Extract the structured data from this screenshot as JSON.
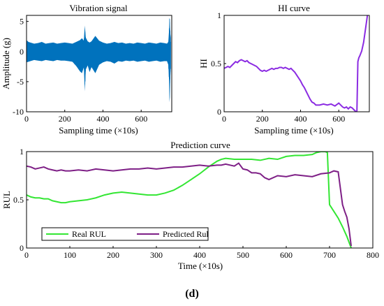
{
  "figure_label": "(d)",
  "colors": {
    "vibration": "#0072bd",
    "hi": "#8b2be2",
    "real": "#33e633",
    "predicted": "#7e1f86"
  },
  "chart_data": [
    {
      "type": "line",
      "title": "Vibration signal",
      "xlabel": "Sampling time (×10s)",
      "ylabel": "Amplitude (g)",
      "xlim": [
        0,
        760
      ],
      "ylim": [
        -10,
        6
      ],
      "xticks": [
        0,
        200,
        400,
        600
      ],
      "yticks": [
        5,
        0,
        -5,
        -10
      ],
      "series": [
        {
          "x": [
            0,
            10,
            20,
            40,
            60,
            80,
            100,
            120,
            140,
            160,
            180,
            200,
            220,
            240,
            260,
            280,
            290,
            300,
            305,
            310,
            320,
            330,
            340,
            360,
            380,
            400,
            420,
            440,
            460,
            480,
            500,
            520,
            540,
            560,
            580,
            600,
            620,
            640,
            660,
            680,
            700,
            720,
            735,
            742,
            746,
            748,
            750,
            752,
            755
          ],
          "high": [
            1.9,
            1.6,
            1.5,
            1.3,
            1.4,
            1.6,
            1.3,
            1.4,
            1.5,
            1.3,
            1.4,
            1.5,
            1.4,
            1.3,
            1.6,
            1.9,
            2.2,
            1.8,
            4.3,
            2.3,
            1.7,
            1.5,
            1.7,
            2.6,
            1.8,
            1.5,
            1.3,
            1.4,
            1.6,
            1.4,
            1.5,
            1.3,
            1.4,
            1.3,
            1.5,
            1.4,
            1.3,
            1.5,
            1.4,
            1.3,
            1.5,
            1.4,
            1.3,
            1.6,
            3.5,
            5.6,
            5.3,
            3.2,
            2.2
          ],
          "low": [
            -1.8,
            -1.7,
            -1.6,
            -1.4,
            -1.5,
            -1.6,
            -1.4,
            -1.5,
            -1.6,
            -1.4,
            -1.5,
            -1.5,
            -1.6,
            -1.7,
            -2.4,
            -3.3,
            -3.6,
            -2.6,
            -6.6,
            -3.0,
            -2.3,
            -3.4,
            -2.6,
            -3.6,
            -2.2,
            -1.8,
            -1.6,
            -1.7,
            -2.0,
            -1.6,
            -1.7,
            -1.5,
            -1.6,
            -1.5,
            -1.7,
            -1.6,
            -1.5,
            -1.7,
            -1.6,
            -1.5,
            -1.7,
            -1.6,
            -1.6,
            -2.2,
            -4.8,
            -8.4,
            -7.6,
            -4.5,
            -2.6
          ]
        }
      ]
    },
    {
      "type": "line",
      "title": "HI curve",
      "xlabel": "Sampling time (×10s)",
      "ylabel": "HI",
      "xlim": [
        0,
        760
      ],
      "ylim": [
        0,
        1
      ],
      "xticks": [
        0,
        200,
        400,
        600
      ],
      "yticks": [
        1,
        0.5,
        0
      ],
      "series": [
        {
          "x": [
            0,
            10,
            20,
            30,
            40,
            50,
            60,
            70,
            80,
            90,
            100,
            110,
            120,
            130,
            140,
            150,
            160,
            170,
            180,
            190,
            200,
            210,
            220,
            230,
            240,
            250,
            260,
            270,
            280,
            290,
            300,
            310,
            320,
            330,
            340,
            350,
            360,
            370,
            380,
            390,
            400,
            410,
            420,
            430,
            440,
            450,
            460,
            470,
            480,
            500,
            520,
            540,
            560,
            580,
            600,
            620,
            630,
            640,
            650,
            660,
            670,
            680,
            690,
            695,
            700,
            705,
            710,
            720,
            730,
            740,
            750
          ],
          "y": [
            0.45,
            0.46,
            0.47,
            0.46,
            0.48,
            0.5,
            0.52,
            0.51,
            0.53,
            0.54,
            0.53,
            0.52,
            0.53,
            0.51,
            0.5,
            0.49,
            0.48,
            0.47,
            0.45,
            0.43,
            0.42,
            0.43,
            0.42,
            0.43,
            0.44,
            0.45,
            0.44,
            0.45,
            0.45,
            0.46,
            0.46,
            0.45,
            0.46,
            0.45,
            0.44,
            0.45,
            0.43,
            0.41,
            0.38,
            0.35,
            0.32,
            0.28,
            0.25,
            0.21,
            0.17,
            0.13,
            0.1,
            0.09,
            0.07,
            0.07,
            0.08,
            0.07,
            0.08,
            0.06,
            0.09,
            0.05,
            0.04,
            0.05,
            0.03,
            0.05,
            0.04,
            0.02,
            0.0,
            0.01,
            0.52,
            0.56,
            0.58,
            0.63,
            0.72,
            0.86,
            1.0
          ]
        }
      ]
    },
    {
      "type": "line",
      "title": "Prediction curve",
      "xlabel": "Time (×10s)",
      "ylabel": "RUL",
      "xlim": [
        0,
        800
      ],
      "ylim": [
        0,
        1
      ],
      "xticks": [
        0,
        100,
        200,
        300,
        400,
        500,
        600,
        700,
        800
      ],
      "yticks": [
        1,
        0.5,
        0
      ],
      "legend": "bottom-left",
      "series": [
        {
          "name": "Real RUL",
          "x": [
            0,
            10,
            20,
            30,
            40,
            50,
            60,
            70,
            80,
            90,
            100,
            120,
            140,
            160,
            180,
            200,
            220,
            240,
            260,
            280,
            300,
            320,
            340,
            360,
            380,
            400,
            420,
            440,
            450,
            460,
            480,
            500,
            520,
            540,
            560,
            580,
            600,
            620,
            640,
            660,
            670,
            680,
            690,
            695,
            700,
            710,
            720,
            730,
            740,
            750
          ],
          "y": [
            0.55,
            0.53,
            0.52,
            0.52,
            0.51,
            0.51,
            0.49,
            0.48,
            0.47,
            0.47,
            0.48,
            0.49,
            0.5,
            0.52,
            0.55,
            0.57,
            0.58,
            0.57,
            0.56,
            0.55,
            0.55,
            0.57,
            0.6,
            0.65,
            0.71,
            0.77,
            0.84,
            0.9,
            0.92,
            0.93,
            0.92,
            0.92,
            0.92,
            0.91,
            0.93,
            0.92,
            0.95,
            0.96,
            0.96,
            0.97,
            0.99,
            1.0,
            1.0,
            0.99,
            0.45,
            0.38,
            0.31,
            0.22,
            0.12,
            0.0
          ]
        },
        {
          "name": "Predicted Rul",
          "x": [
            0,
            10,
            20,
            30,
            40,
            50,
            60,
            70,
            80,
            90,
            100,
            120,
            140,
            160,
            180,
            200,
            220,
            240,
            260,
            280,
            300,
            320,
            340,
            360,
            380,
            400,
            420,
            440,
            450,
            460,
            470,
            480,
            490,
            500,
            510,
            520,
            530,
            540,
            550,
            560,
            580,
            600,
            620,
            640,
            660,
            680,
            700,
            710,
            720,
            730,
            735,
            740,
            745,
            750
          ],
          "y": [
            0.85,
            0.84,
            0.82,
            0.83,
            0.84,
            0.82,
            0.81,
            0.8,
            0.81,
            0.8,
            0.8,
            0.81,
            0.8,
            0.82,
            0.81,
            0.8,
            0.81,
            0.82,
            0.82,
            0.83,
            0.82,
            0.83,
            0.84,
            0.84,
            0.85,
            0.86,
            0.85,
            0.86,
            0.86,
            0.87,
            0.86,
            0.85,
            0.88,
            0.82,
            0.81,
            0.78,
            0.78,
            0.77,
            0.73,
            0.71,
            0.75,
            0.74,
            0.76,
            0.75,
            0.74,
            0.77,
            0.78,
            0.8,
            0.79,
            0.45,
            0.38,
            0.32,
            0.2,
            0.02
          ]
        }
      ]
    }
  ]
}
